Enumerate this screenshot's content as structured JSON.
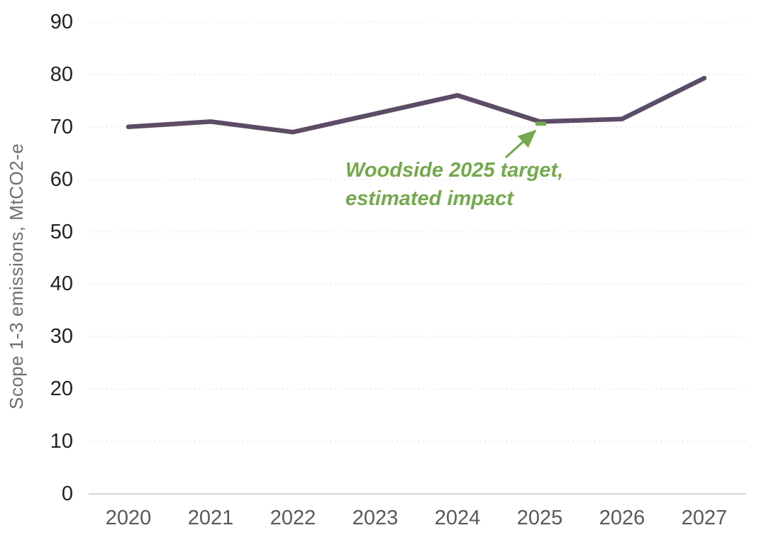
{
  "chart_data": {
    "type": "line",
    "title": "",
    "categories": [
      "2020",
      "2021",
      "2022",
      "2023",
      "2024",
      "2025",
      "2026",
      "2027"
    ],
    "series": [
      {
        "name": "Scope 1-3 emissions",
        "values": [
          70,
          71,
          69,
          72.5,
          76,
          71,
          71.5,
          79.3
        ],
        "color": "#5d4c66"
      }
    ],
    "xlabel": "",
    "ylabel": "Scope 1-3 emissions, MtCO2-e",
    "ylim": [
      0,
      90
    ],
    "yticks": [
      0,
      10,
      20,
      30,
      40,
      50,
      60,
      70,
      80,
      90
    ],
    "grid": "horizontal-dotted",
    "legend": "none",
    "annotation": {
      "line1": "Woodside 2025 target,",
      "line2": "estimated impact",
      "color": "#74a94d",
      "target_category": "2025",
      "target_value": 70.6,
      "marker": "green-dash"
    }
  },
  "colors": {
    "series_line": "#5d4c66",
    "annotation_green": "#74a94d",
    "gridline": "#e7e7e7",
    "axis_line": "#d6d6d6",
    "y_tick_text": "#222222",
    "x_tick_text": "#595959",
    "axis_title_text": "#6e6e6e"
  }
}
